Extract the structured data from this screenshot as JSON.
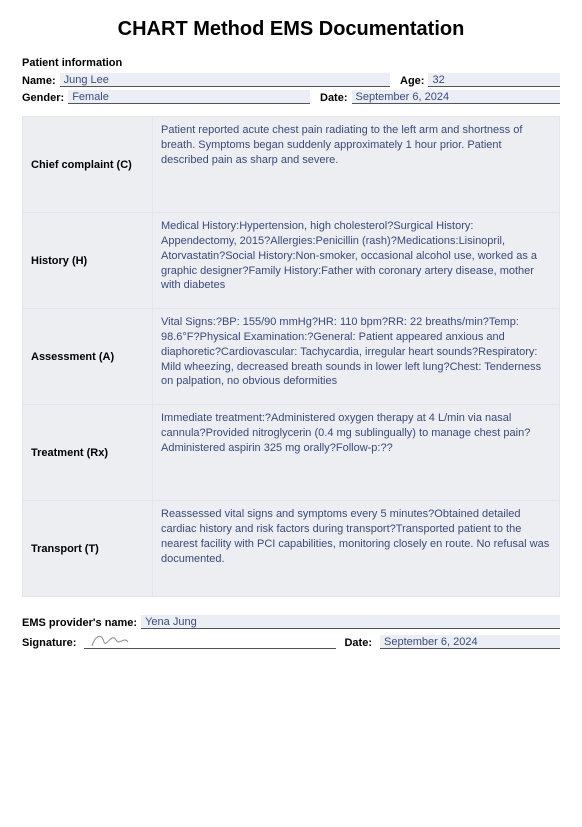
{
  "title": "CHART Method EMS Documentation",
  "patientInfo": {
    "sectionLabel": "Patient information",
    "nameLabel": "Name:",
    "name": "Jung Lee",
    "ageLabel": "Age:",
    "age": "32",
    "genderLabel": "Gender:",
    "gender": "Female",
    "dateLabel": "Date:",
    "date": "September 6, 2024"
  },
  "chart": {
    "rows": [
      {
        "label": "Chief complaint (C)",
        "text": "Patient reported acute chest pain radiating to the left arm and shortness of breath. Symptoms began suddenly approximately 1 hour prior. Patient described pain as sharp and severe."
      },
      {
        "label": "History (H)",
        "text": "Medical History:Hypertension, high cholesterol?Surgical History: Appendectomy, 2015?Allergies:Penicillin (rash)?Medications:Lisinopril, Atorvastatin?Social History:Non-smoker, occasional alcohol use, worked as a graphic designer?Family History:Father with coronary artery disease, mother with diabetes"
      },
      {
        "label": "Assessment (A)",
        "text": "Vital Signs:?BP: 155/90 mmHg?HR: 110 bpm?RR: 22 breaths/min?Temp: 98.6°F?Physical Examination:?General: Patient appeared anxious and diaphoretic?Cardiovascular: Tachycardia, irregular heart sounds?Respiratory: Mild wheezing, decreased breath sounds in lower left lung?Chest: Tenderness on palpation, no obvious deformities"
      },
      {
        "label": "Treatment (Rx)",
        "text": "Immediate treatment:?Administered oxygen therapy at 4 L/min via nasal cannula?Provided nitroglycerin (0.4 mg sublingually) to manage chest pain?Administered aspirin 325 mg orally?Follow-p:??"
      },
      {
        "label": "Transport (T)",
        "text": "Reassessed vital signs and symptoms every 5 minutes?Obtained detailed cardiac history and risk factors during transport?Transported patient to the nearest facility with PCI capabilities, monitoring closely en route. No refusal was documented."
      }
    ]
  },
  "footer": {
    "providerLabel": "EMS provider's name:",
    "provider": "Yena Jung",
    "signatureLabel": "Signature:",
    "dateLabel": "Date:",
    "date": "September 6, 2024"
  },
  "style": {
    "textColor": "#3a4a7a",
    "cellBg": "#eceef2",
    "fieldBg": "#eceef5",
    "border": "#e3e5ec"
  }
}
